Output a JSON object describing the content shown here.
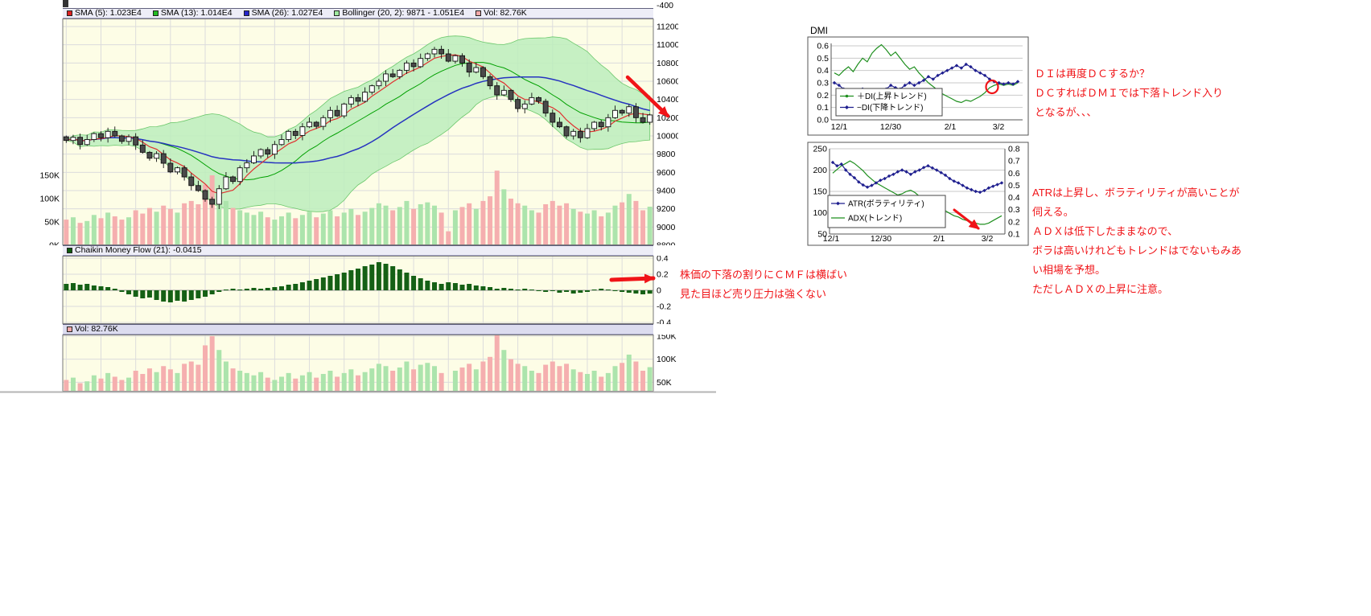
{
  "main_chart": {
    "top_axis_label": "-400",
    "legend": [
      {
        "color": "#dd2222",
        "label": "SMA (5): 1.023E4"
      },
      {
        "color": "#22bb22",
        "label": "SMA (13): 1.014E4"
      },
      {
        "color": "#2626cc",
        "label": "SMA (26): 1.027E4"
      },
      {
        "color": "#9fe89f",
        "label": "Bollinger (20, 2): 9871 - 1.051E4"
      },
      {
        "color": "#f4a9a9",
        "label": "Vol: 82.76K"
      }
    ],
    "price_axis_ticks": [
      "11200",
      "11000",
      "10800",
      "10600",
      "10400",
      "10200",
      "10000",
      "9800",
      "9600",
      "9400",
      "9200",
      "9000",
      "8800"
    ],
    "volume_axis_ticks": [
      "150K",
      "100K",
      "50K",
      "0K"
    ]
  },
  "cmf_panel": {
    "legend_color": "#0e5a0e",
    "legend_label": "Chaikin Money Flow (21): -0.0415",
    "axis_ticks": [
      "0.4",
      "0.2",
      "0",
      "-0.2",
      "-0.4"
    ]
  },
  "vol_panel": {
    "legend_color": "#f4a9a9",
    "legend_label": "Vol: 82.76K",
    "axis_ticks": [
      "150K",
      "100K",
      "50K"
    ]
  },
  "dmi_chart": {
    "title": "DMI",
    "y_ticks": [
      "0.6",
      "0.5",
      "0.4",
      "0.3",
      "0.2",
      "0.1",
      "0.0"
    ],
    "x_ticks": [
      "12/1",
      "12/30",
      "2/1",
      "3/2"
    ],
    "legend": [
      "＋DI(上昇トレンド)",
      "−DI(下降トレンド)"
    ]
  },
  "atr_chart": {
    "left_ticks": [
      "250",
      "200",
      "150",
      "100",
      "50"
    ],
    "right_ticks": [
      "0.8",
      "0.7",
      "0.6",
      "0.5",
      "0.4",
      "0.3",
      "0.2",
      "0.1"
    ],
    "x_ticks": [
      "12/1",
      "12/30",
      "2/1",
      "3/2"
    ],
    "legend": [
      "ATR(ボラティリティ)",
      "ADX(トレンド)"
    ]
  },
  "annotations": {
    "dmi_note": [
      "ＤＩは再度ＤＣするか？",
      "ＤＣすればＤＭＩでは下落トレンド入り",
      "となるが、、、"
    ],
    "atr_note": [
      "ATRは上昇し、ボラティリティが高いことが",
      "伺える。",
      "ＡＤＸは低下したままなので、",
      "ボラは高いけれどもトレンドはでないもみあ",
      "い相場を予想。",
      "ただしＡＤＸの上昇に注意。"
    ],
    "cmf_note": [
      "株価の下落の割りにＣＭＦは横ばい",
      "見た目ほど売り圧力は強くない"
    ]
  },
  "colors": {
    "chart_bg": "#fdfde6",
    "grid": "#dcdcdc",
    "up_candle": "#ffffff",
    "down_candle": "#4a4a4a",
    "sma5": "#e03030",
    "sma13": "#00a000",
    "sma26": "#2633c0",
    "boll_fill": "#bcedbc",
    "boll_edge": "#6cc86c",
    "vol_up": "#ace4ac",
    "vol_down": "#f5afaf",
    "cmf_bar": "#156015",
    "plus_di": "#1e8f1e",
    "minus_di": "#1f1f8f",
    "atr_line": "#1f1f8f",
    "adx_line": "#1e8f1e",
    "annotation": "#f01418"
  },
  "chart_data": [
    {
      "type": "candlestick",
      "title": "Daily price with SMA(5/13/26), Bollinger(20,2) and volume overlay",
      "ylim": [
        8800,
        11300
      ],
      "y_ticks": [
        11200,
        11000,
        10800,
        10600,
        10400,
        10200,
        10000,
        9800,
        9600,
        9400,
        9200,
        9000,
        8800
      ],
      "indicator_readouts": {
        "sma5": "1.023E4",
        "sma13": "1.014E4",
        "sma26": "1.027E4",
        "bollinger": "9871 - 1.051E4",
        "volume": "82.76K"
      },
      "close": [
        9950,
        9985,
        9905,
        9960,
        10025,
        9980,
        10050,
        10000,
        9940,
        9990,
        9900,
        9820,
        9755,
        9805,
        9700,
        9605,
        9650,
        9550,
        9455,
        9400,
        9305,
        9250,
        9420,
        9550,
        9500,
        9650,
        9705,
        9780,
        9850,
        9800,
        9905,
        9960,
        10050,
        10005,
        10100,
        10150,
        10105,
        10200,
        10280,
        10220,
        10350,
        10420,
        10380,
        10480,
        10550,
        10600,
        10680,
        10650,
        10720,
        10800,
        10760,
        10850,
        10900,
        10950,
        10900,
        10820,
        10880,
        10800,
        10700,
        10750,
        10650,
        10550,
        10450,
        10500,
        10400,
        10300,
        10350,
        10420,
        10380,
        10250,
        10150,
        10100,
        10000,
        10050,
        9980,
        10080,
        10150,
        10100,
        10200,
        10280,
        10250,
        10320,
        10200,
        10150,
        10230
      ],
      "volume_k": [
        55,
        60,
        48,
        52,
        65,
        58,
        70,
        62,
        55,
        60,
        75,
        68,
        80,
        72,
        85,
        78,
        70,
        90,
        95,
        88,
        130,
        150,
        120,
        95,
        80,
        75,
        70,
        65,
        72,
        60,
        55,
        62,
        70,
        58,
        65,
        72,
        60,
        68,
        75,
        62,
        70,
        78,
        65,
        72,
        80,
        90,
        85,
        75,
        82,
        95,
        78,
        88,
        92,
        85,
        70,
        30,
        75,
        82,
        90,
        78,
        95,
        105,
        160,
        120,
        100,
        90,
        85,
        75,
        70,
        88,
        95,
        85,
        90,
        78,
        72,
        68,
        75,
        62,
        70,
        85,
        92,
        110,
        95,
        75,
        82.76
      ]
    },
    {
      "type": "bar",
      "title": "Chaikin Money Flow (21)",
      "last_value": -0.0415,
      "ylim": [
        -0.45,
        0.42
      ],
      "values": [
        0.08,
        0.09,
        0.07,
        0.08,
        0.06,
        0.05,
        0.04,
        0.02,
        -0.02,
        -0.05,
        -0.08,
        -0.1,
        -0.09,
        -0.12,
        -0.14,
        -0.15,
        -0.13,
        -0.14,
        -0.12,
        -0.1,
        -0.08,
        -0.05,
        -0.02,
        0.01,
        0.02,
        0.01,
        0.02,
        0.03,
        0.02,
        0.03,
        0.04,
        0.05,
        0.07,
        0.08,
        0.1,
        0.12,
        0.14,
        0.16,
        0.18,
        0.2,
        0.22,
        0.25,
        0.27,
        0.3,
        0.32,
        0.35,
        0.33,
        0.3,
        0.26,
        0.22,
        0.18,
        0.15,
        0.12,
        0.1,
        0.08,
        0.1,
        0.09,
        0.07,
        0.08,
        0.06,
        0.05,
        0.04,
        0.02,
        0.03,
        0.02,
        0.01,
        0.02,
        0.01,
        -0.01,
        -0.02,
        -0.01,
        -0.03,
        -0.02,
        -0.04,
        -0.03,
        -0.02,
        0.01,
        0.02,
        0.01,
        -0.01,
        -0.02,
        -0.03,
        -0.04,
        -0.05,
        -0.0415
      ]
    },
    {
      "type": "bar",
      "title": "Vol",
      "last_value": "82.76K",
      "ylim_k": [
        0,
        160
      ],
      "values": [
        55,
        60,
        48,
        52,
        65,
        58,
        70,
        62,
        55,
        60,
        75,
        68,
        80,
        72,
        85,
        78,
        70,
        90,
        95,
        88,
        130,
        150,
        120,
        95,
        80,
        75,
        70,
        65,
        72,
        60,
        55,
        62,
        70,
        58,
        65,
        72,
        60,
        68,
        75,
        62,
        70,
        78,
        65,
        72,
        80,
        90,
        85,
        75,
        82,
        95,
        78,
        88,
        92,
        85,
        70,
        30,
        75,
        82,
        90,
        78,
        95,
        105,
        160,
        120,
        100,
        90,
        85,
        75,
        70,
        88,
        95,
        85,
        90,
        78,
        72,
        68,
        75,
        62,
        70,
        85,
        92,
        110,
        95,
        75,
        82.76
      ]
    },
    {
      "type": "line",
      "title": "DMI",
      "ylim": [
        0,
        0.6
      ],
      "x_ticks": [
        "12/1",
        "12/30",
        "2/1",
        "3/2"
      ],
      "series": [
        {
          "name": "＋DI(上昇トレンド)",
          "values": [
            0.38,
            0.36,
            0.4,
            0.43,
            0.39,
            0.45,
            0.5,
            0.47,
            0.54,
            0.58,
            0.61,
            0.57,
            0.52,
            0.55,
            0.5,
            0.45,
            0.41,
            0.43,
            0.38,
            0.34,
            0.3,
            0.27,
            0.24,
            0.21,
            0.19,
            0.17,
            0.15,
            0.14,
            0.16,
            0.15,
            0.17,
            0.19,
            0.22,
            0.26,
            0.28,
            0.29,
            0.28,
            0.29,
            0.28,
            0.3
          ]
        },
        {
          "name": "−DI(下降トレンド)",
          "values": [
            0.3,
            0.28,
            0.25,
            0.22,
            0.2,
            0.22,
            0.25,
            0.24,
            0.22,
            0.2,
            0.22,
            0.25,
            0.28,
            0.26,
            0.25,
            0.28,
            0.3,
            0.28,
            0.3,
            0.32,
            0.35,
            0.33,
            0.36,
            0.38,
            0.4,
            0.42,
            0.44,
            0.42,
            0.45,
            0.43,
            0.4,
            0.38,
            0.36,
            0.33,
            0.31,
            0.3,
            0.29,
            0.3,
            0.29,
            0.31
          ]
        }
      ]
    },
    {
      "type": "line",
      "title": "ATR / ADX",
      "left_ylim": [
        50,
        250
      ],
      "right_ylim": [
        0.1,
        0.8
      ],
      "x_ticks": [
        "12/1",
        "12/30",
        "2/1",
        "3/2"
      ],
      "series": [
        {
          "name": "ATR(ボラティリティ)",
          "axis": "left",
          "values": [
            218,
            210,
            214,
            200,
            190,
            182,
            172,
            165,
            160,
            164,
            170,
            176,
            180,
            186,
            190,
            196,
            200,
            196,
            190,
            196,
            200,
            206,
            210,
            205,
            200,
            194,
            188,
            180,
            174,
            170,
            164,
            158,
            154,
            150,
            148,
            152,
            158,
            162,
            166,
            170
          ]
        },
        {
          "name": "ADX(トレンド)",
          "axis": "right",
          "values": [
            0.6,
            0.63,
            0.66,
            0.68,
            0.7,
            0.68,
            0.65,
            0.62,
            0.58,
            0.55,
            0.52,
            0.5,
            0.48,
            0.46,
            0.44,
            0.42,
            0.43,
            0.45,
            0.46,
            0.44,
            0.41,
            0.39,
            0.37,
            0.35,
            0.33,
            0.31,
            0.29,
            0.27,
            0.25,
            0.24,
            0.22,
            0.21,
            0.2,
            0.19,
            0.18,
            0.18,
            0.19,
            0.21,
            0.23,
            0.25
          ]
        }
      ]
    }
  ]
}
